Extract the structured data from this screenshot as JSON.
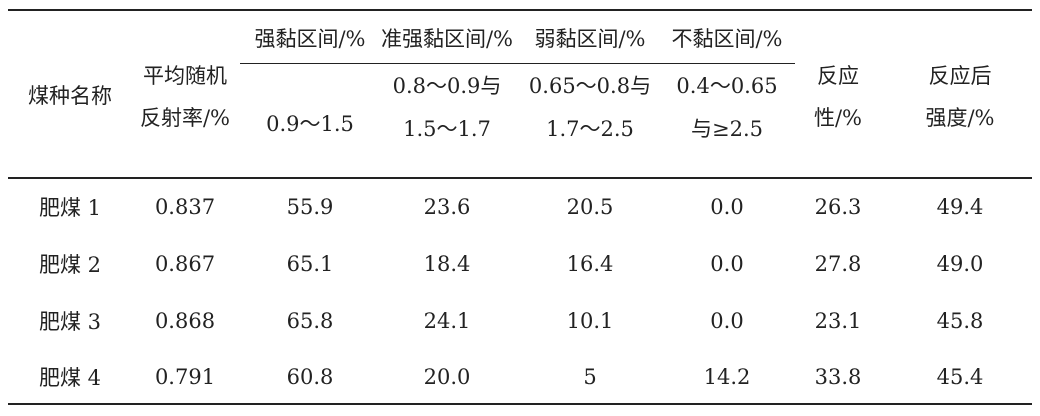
{
  "table": {
    "columns": [
      {
        "lines": [
          "煤种名称"
        ]
      },
      {
        "lines": [
          "平均随机",
          "反射率/%"
        ]
      },
      {
        "group": "强黏区间/%",
        "lines": [
          "0.9～1.5"
        ]
      },
      {
        "group": "准强黏区间/%",
        "lines": [
          "0.8～0.9与",
          "1.5～1.7"
        ]
      },
      {
        "group": "弱黏区间/%",
        "lines": [
          "0.65～0.8与",
          "1.7～2.5"
        ]
      },
      {
        "group": "不黏区间/%",
        "lines": [
          "0.4～0.65",
          "与≥2.5"
        ]
      },
      {
        "lines": [
          "反应",
          "性/%"
        ]
      },
      {
        "lines": [
          "反应后",
          "强度/%"
        ]
      }
    ],
    "rows": [
      [
        "肥煤 1",
        "0.837",
        "55.9",
        "23.6",
        "20.5",
        "0.0",
        "26.3",
        "49.4"
      ],
      [
        "肥煤 2",
        "0.867",
        "65.1",
        "18.4",
        "16.4",
        "0.0",
        "27.8",
        "49.0"
      ],
      [
        "肥煤 3",
        "0.868",
        "65.8",
        "24.1",
        "10.1",
        "0.0",
        "23.1",
        "45.8"
      ],
      [
        "肥煤 4",
        "0.791",
        "60.8",
        "20.0",
        "5",
        "14.2",
        "33.8",
        "45.4"
      ]
    ]
  }
}
